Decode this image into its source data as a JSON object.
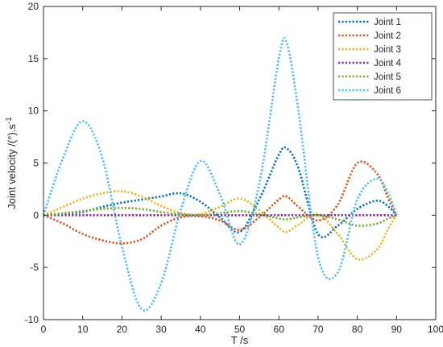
{
  "chart_data": {
    "type": "line",
    "title": "",
    "xlabel": "T /s",
    "ylabel": "Joint velocity /(°).s",
    "ylabel_sup": "-1",
    "xlim": [
      0,
      100
    ],
    "ylim": [
      -10,
      20
    ],
    "xticks": [
      0,
      10,
      20,
      30,
      40,
      50,
      60,
      70,
      80,
      90,
      100
    ],
    "yticks": [
      -10,
      -5,
      0,
      5,
      10,
      15,
      20
    ],
    "grid": false,
    "legend_position": "top-right",
    "line_style": "dotted",
    "x": [
      0,
      5,
      10,
      15,
      20,
      25,
      30,
      35,
      40,
      45,
      50,
      55,
      60,
      62,
      65,
      70,
      75,
      80,
      85,
      88,
      90
    ],
    "series": [
      {
        "name": "Joint 1",
        "color": "#0072BD",
        "values": [
          0,
          0.1,
          0.3,
          0.8,
          1.2,
          1.5,
          1.8,
          2.1,
          1.3,
          -0.2,
          -1.6,
          1.5,
          5.8,
          6.4,
          4.5,
          -1.8,
          -1.0,
          0.6,
          1.4,
          0.8,
          0
        ]
      },
      {
        "name": "Joint 2",
        "color": "#D95319",
        "values": [
          0,
          -0.8,
          -1.8,
          -2.4,
          -2.7,
          -2.3,
          -1.0,
          -0.2,
          -0.1,
          -0.5,
          -1.4,
          -0.2,
          1.5,
          1.8,
          0.8,
          -0.5,
          1.0,
          5.0,
          4.0,
          1.5,
          0
        ]
      },
      {
        "name": "Joint 3",
        "color": "#EDB120",
        "values": [
          0,
          0.8,
          1.6,
          2.1,
          2.3,
          1.8,
          0.9,
          0.2,
          0.1,
          0.8,
          1.6,
          0.5,
          -1.2,
          -1.6,
          -0.9,
          0.1,
          -1.8,
          -4.2,
          -3.3,
          -1.2,
          0
        ]
      },
      {
        "name": "Joint 4",
        "color": "#7E2F8E",
        "values": [
          0,
          0,
          0,
          0,
          0,
          0,
          0,
          0,
          0,
          0,
          0,
          0,
          0,
          0,
          0,
          0,
          0,
          0,
          0,
          0,
          0
        ]
      },
      {
        "name": "Joint 5",
        "color": "#77AC30",
        "values": [
          0,
          0.2,
          0.4,
          0.6,
          0.7,
          0.6,
          0.3,
          0.1,
          0.0,
          0.2,
          0.4,
          0.1,
          -0.3,
          -0.4,
          -0.2,
          0.0,
          -0.4,
          -1.0,
          -0.8,
          -0.3,
          0
        ]
      },
      {
        "name": "Joint 6",
        "color": "#4DBEEE",
        "values": [
          0,
          5.5,
          9.0,
          5.5,
          -3.0,
          -9.0,
          -6.5,
          0.5,
          5.2,
          2.0,
          -2.8,
          3.0,
          15.0,
          16.5,
          10.0,
          -4.0,
          -5.5,
          1.5,
          3.5,
          2.0,
          0
        ]
      }
    ]
  }
}
